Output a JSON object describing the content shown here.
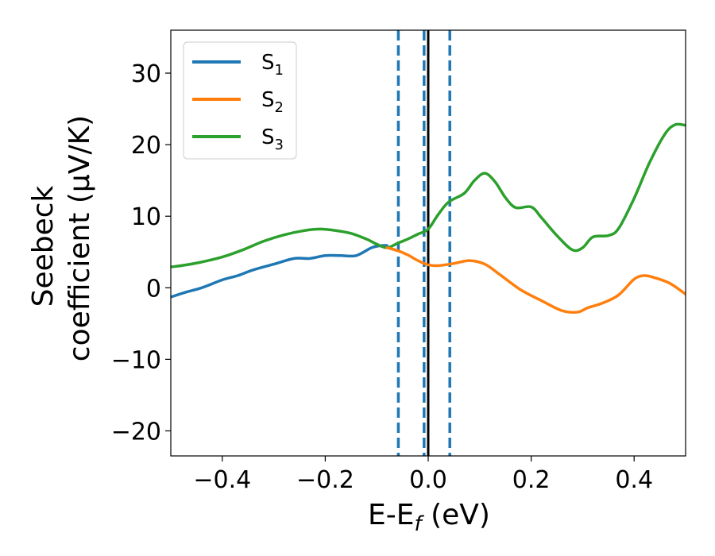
{
  "chart_data": {
    "type": "line",
    "title": "",
    "xlabel": "E-E",
    "xlabel_sub": "f",
    "xlabel_unit": " (eV)",
    "ylabel_line1": "Seebeck",
    "ylabel_line2": "coefficient  (μV/K)",
    "xlim": [
      -0.5,
      0.5
    ],
    "ylim": [
      -23.5,
      36
    ],
    "xticks": [
      -0.4,
      -0.2,
      0.0,
      0.2,
      0.4
    ],
    "xtick_labels": [
      "−0.4",
      "−0.2",
      "0.0",
      "0.2",
      "0.4"
    ],
    "yticks": [
      -20,
      -10,
      0,
      10,
      20,
      30
    ],
    "ytick_labels": [
      "−20",
      "−10",
      "0",
      "10",
      "20",
      "30"
    ],
    "grid": false,
    "legend_position": "top-left",
    "vertical_lines": [
      {
        "name": "fermi-line",
        "x": 0.0,
        "style": "solid",
        "color": "#000000"
      },
      {
        "name": "dashed-line-1",
        "x": -0.058,
        "style": "dashed",
        "color": "#1f77b4"
      },
      {
        "name": "dashed-line-2",
        "x": -0.008,
        "style": "dashed",
        "color": "#1f77b4"
      },
      {
        "name": "dashed-line-3",
        "x": 0.042,
        "style": "dashed",
        "color": "#1f77b4"
      }
    ],
    "series": [
      {
        "name": "S",
        "sub": "1",
        "color": "#1f77b4",
        "x": [
          -0.5,
          -0.47,
          -0.44,
          -0.4,
          -0.37,
          -0.34,
          -0.3,
          -0.26,
          -0.23,
          -0.2,
          -0.17,
          -0.14,
          -0.11,
          -0.09,
          -0.08
        ],
        "y": [
          -1.3,
          -0.6,
          0.0,
          1.1,
          1.7,
          2.5,
          3.3,
          4.1,
          4.1,
          4.5,
          4.5,
          4.5,
          5.6,
          5.9,
          5.9
        ]
      },
      {
        "name": "S",
        "sub": "2",
        "color": "#ff7f0e",
        "x": [
          -0.08,
          -0.06,
          -0.04,
          -0.02,
          0.0,
          0.02,
          0.05,
          0.08,
          0.11,
          0.14,
          0.18,
          0.22,
          0.26,
          0.29,
          0.31,
          0.34,
          0.37,
          0.4,
          0.42,
          0.44,
          0.47,
          0.5
        ],
        "y": [
          5.6,
          5.2,
          4.6,
          3.8,
          3.2,
          3.1,
          3.4,
          3.8,
          3.3,
          1.8,
          -0.3,
          -1.8,
          -3.2,
          -3.4,
          -2.8,
          -2.1,
          -1.0,
          1.2,
          1.7,
          1.4,
          0.6,
          -0.9
        ]
      },
      {
        "name": "S",
        "sub": "3",
        "color": "#2ca02c",
        "x": [
          -0.5,
          -0.47,
          -0.44,
          -0.4,
          -0.36,
          -0.32,
          -0.28,
          -0.24,
          -0.21,
          -0.18,
          -0.15,
          -0.12,
          -0.1,
          -0.08,
          -0.06,
          -0.04,
          -0.02,
          0.0,
          0.02,
          0.04,
          0.07,
          0.09,
          0.11,
          0.13,
          0.15,
          0.17,
          0.2,
          0.22,
          0.25,
          0.28,
          0.3,
          0.32,
          0.35,
          0.37,
          0.4,
          0.43,
          0.46,
          0.48,
          0.5
        ],
        "y": [
          2.9,
          3.2,
          3.6,
          4.3,
          5.3,
          6.5,
          7.4,
          8.0,
          8.2,
          8.0,
          7.6,
          6.8,
          6.1,
          5.6,
          6.2,
          6.8,
          7.5,
          8.2,
          10.3,
          12.0,
          13.2,
          15.0,
          16.0,
          14.8,
          12.6,
          11.2,
          11.3,
          9.8,
          7.3,
          5.3,
          5.6,
          7.1,
          7.3,
          8.3,
          12.5,
          17.5,
          21.5,
          22.8,
          22.7
        ]
      }
    ]
  }
}
